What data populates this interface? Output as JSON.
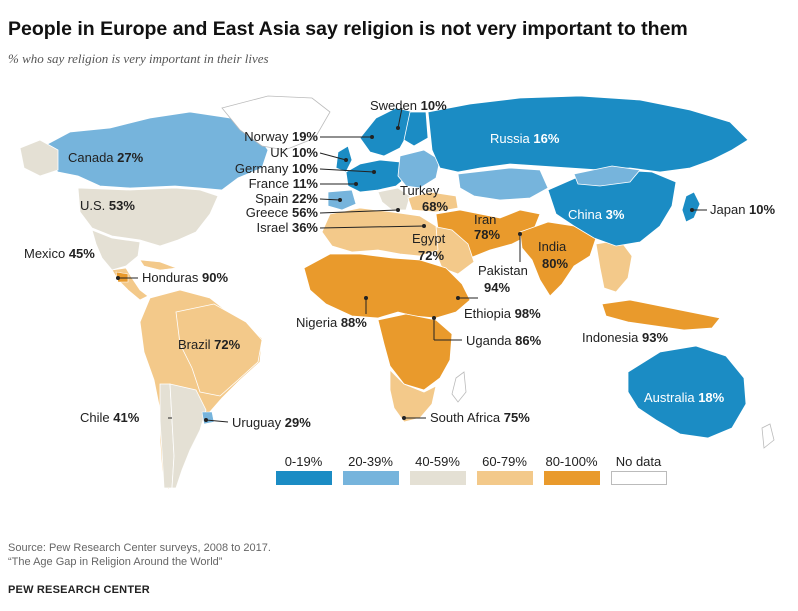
{
  "title": "People in Europe and East Asia say religion is not very important to them",
  "subtitle": "% who say religion is very important in their lives",
  "colors": {
    "0-19%": "#1b8cc4",
    "20-39%": "#76b4dc",
    "40-59%": "#e4e0d4",
    "60-79%": "#f3c98a",
    "80-100%": "#e99a2c",
    "No data": "#ffffff"
  },
  "legend": [
    "0-19%",
    "20-39%",
    "40-59%",
    "60-79%",
    "80-100%",
    "No data"
  ],
  "countries": {
    "sweden": {
      "name": "Sweden",
      "value": "10%"
    },
    "norway": {
      "name": "Norway",
      "value": "19%"
    },
    "uk": {
      "name": "UK",
      "value": "10%"
    },
    "germany": {
      "name": "Germany",
      "value": "10%"
    },
    "france": {
      "name": "France",
      "value": "11%"
    },
    "spain": {
      "name": "Spain",
      "value": "22%"
    },
    "greece": {
      "name": "Greece",
      "value": "56%"
    },
    "israel": {
      "name": "Israel",
      "value": "36%"
    },
    "russia": {
      "name": "Russia",
      "value": "16%"
    },
    "canada": {
      "name": "Canada",
      "value": "27%"
    },
    "us": {
      "name": "U.S.",
      "value": "53%"
    },
    "mexico": {
      "name": "Mexico",
      "value": "45%"
    },
    "honduras": {
      "name": "Honduras",
      "value": "90%"
    },
    "brazil": {
      "name": "Brazil",
      "value": "72%"
    },
    "chile": {
      "name": "Chile",
      "value": "41%"
    },
    "uruguay": {
      "name": "Uruguay",
      "value": "29%"
    },
    "turkey": {
      "name": "Turkey",
      "value": "68%"
    },
    "egypt": {
      "name": "Egypt",
      "value": "72%"
    },
    "iran": {
      "name": "Iran",
      "value": "78%"
    },
    "pakistan": {
      "name": "Pakistan",
      "value": "94%"
    },
    "india": {
      "name": "India",
      "value": "80%"
    },
    "china": {
      "name": "China",
      "value": "3%"
    },
    "japan": {
      "name": "Japan",
      "value": "10%"
    },
    "nigeria": {
      "name": "Nigeria",
      "value": "88%"
    },
    "ethiopia": {
      "name": "Ethiopia",
      "value": "98%"
    },
    "uganda": {
      "name": "Uganda",
      "value": "86%"
    },
    "south_africa": {
      "name": "South Africa",
      "value": "75%"
    },
    "indonesia": {
      "name": "Indonesia",
      "value": "93%"
    },
    "australia": {
      "name": "Australia",
      "value": "18%"
    }
  },
  "source_line1": "Source: Pew Research Center surveys, 2008 to 2017.",
  "source_line2": "“The Age Gap in Religion Around the World”",
  "org": "PEW RESEARCH CENTER"
}
